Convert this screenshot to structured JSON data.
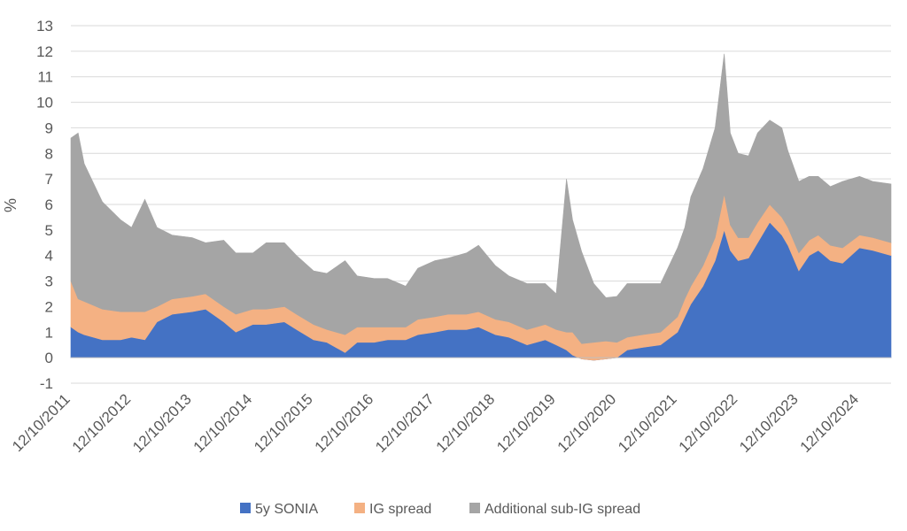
{
  "chart_data": {
    "type": "area",
    "stacked": true,
    "title": "",
    "xlabel": "",
    "ylabel": "%",
    "ylim": [
      -1,
      13
    ],
    "y_ticks": [
      -1,
      0,
      1,
      2,
      3,
      4,
      5,
      6,
      7,
      8,
      9,
      10,
      11,
      12,
      13
    ],
    "x_tick_labels": [
      "12/10/2011",
      "12/10/2012",
      "12/10/2013",
      "12/10/2014",
      "12/10/2015",
      "12/10/2016",
      "12/10/2017",
      "12/10/2018",
      "12/10/2019",
      "12/10/2020",
      "12/10/2021",
      "12/10/2022",
      "12/10/2023",
      "12/10/2024"
    ],
    "x_start": 2011.78,
    "x_end": 2025.3,
    "grid": "horizontal",
    "legend_position": "bottom",
    "x": [
      2011.78,
      2011.9,
      2012.0,
      2012.3,
      2012.6,
      2012.78,
      2013.0,
      2013.2,
      2013.45,
      2013.78,
      2014.0,
      2014.3,
      2014.5,
      2014.78,
      2015.0,
      2015.3,
      2015.5,
      2015.78,
      2016.0,
      2016.3,
      2016.5,
      2016.78,
      2017.0,
      2017.3,
      2017.5,
      2017.78,
      2018.0,
      2018.3,
      2018.5,
      2018.78,
      2019.0,
      2019.3,
      2019.6,
      2019.78,
      2019.95,
      2020.05,
      2020.2,
      2020.4,
      2020.6,
      2020.78,
      2020.95,
      2021.2,
      2021.5,
      2021.78,
      2021.9,
      2022.0,
      2022.2,
      2022.4,
      2022.55,
      2022.65,
      2022.78,
      2022.95,
      2023.1,
      2023.3,
      2023.5,
      2023.6,
      2023.78,
      2023.95,
      2024.1,
      2024.3,
      2024.5,
      2024.78,
      2025.0,
      2025.3
    ],
    "series": [
      {
        "name": "5y SONIA",
        "color": "#4472C4",
        "values": [
          1.2,
          1.0,
          0.9,
          0.7,
          0.7,
          0.8,
          0.7,
          1.4,
          1.7,
          1.8,
          1.9,
          1.4,
          1.0,
          1.3,
          1.3,
          1.4,
          1.1,
          0.7,
          0.6,
          0.2,
          0.6,
          0.6,
          0.7,
          0.7,
          0.9,
          1.0,
          1.1,
          1.1,
          1.2,
          0.9,
          0.8,
          0.5,
          0.7,
          0.5,
          0.3,
          0.1,
          -0.05,
          -0.1,
          -0.05,
          0.0,
          0.3,
          0.4,
          0.5,
          1.0,
          1.6,
          2.1,
          2.8,
          3.8,
          5.0,
          4.2,
          3.8,
          3.9,
          4.5,
          5.3,
          4.8,
          4.4,
          3.4,
          4.0,
          4.2,
          3.8,
          3.7,
          4.3,
          4.2,
          4.0
        ]
      },
      {
        "name": "IG spread",
        "color": "#F4B183",
        "values": [
          1.8,
          1.3,
          1.3,
          1.2,
          1.1,
          1.0,
          1.1,
          0.6,
          0.6,
          0.6,
          0.6,
          0.6,
          0.7,
          0.6,
          0.6,
          0.6,
          0.6,
          0.6,
          0.5,
          0.7,
          0.6,
          0.6,
          0.5,
          0.5,
          0.6,
          0.6,
          0.6,
          0.6,
          0.6,
          0.6,
          0.6,
          0.6,
          0.6,
          0.6,
          0.7,
          0.9,
          0.6,
          0.7,
          0.7,
          0.6,
          0.5,
          0.5,
          0.5,
          0.6,
          0.7,
          0.7,
          0.8,
          0.9,
          1.4,
          1.0,
          0.9,
          0.8,
          0.8,
          0.7,
          0.7,
          0.7,
          0.7,
          0.6,
          0.6,
          0.6,
          0.6,
          0.5,
          0.5,
          0.5
        ]
      },
      {
        "name": "Additional sub-IG spread",
        "color": "#A5A5A5",
        "values": [
          5.6,
          6.5,
          5.4,
          4.2,
          3.6,
          3.3,
          4.4,
          3.1,
          2.5,
          2.3,
          2.0,
          2.6,
          2.4,
          2.2,
          2.6,
          2.5,
          2.3,
          2.1,
          2.2,
          2.9,
          2.0,
          1.9,
          1.9,
          1.6,
          2.0,
          2.2,
          2.2,
          2.4,
          2.6,
          2.1,
          1.8,
          1.8,
          1.6,
          1.4,
          6.0,
          4.4,
          3.6,
          2.3,
          1.7,
          1.8,
          2.1,
          2.0,
          1.9,
          2.7,
          2.8,
          3.5,
          3.8,
          4.3,
          5.5,
          3.6,
          3.3,
          3.2,
          3.5,
          3.3,
          3.5,
          3.0,
          2.8,
          2.5,
          2.3,
          2.3,
          2.6,
          2.3,
          2.2,
          2.3
        ]
      }
    ]
  }
}
